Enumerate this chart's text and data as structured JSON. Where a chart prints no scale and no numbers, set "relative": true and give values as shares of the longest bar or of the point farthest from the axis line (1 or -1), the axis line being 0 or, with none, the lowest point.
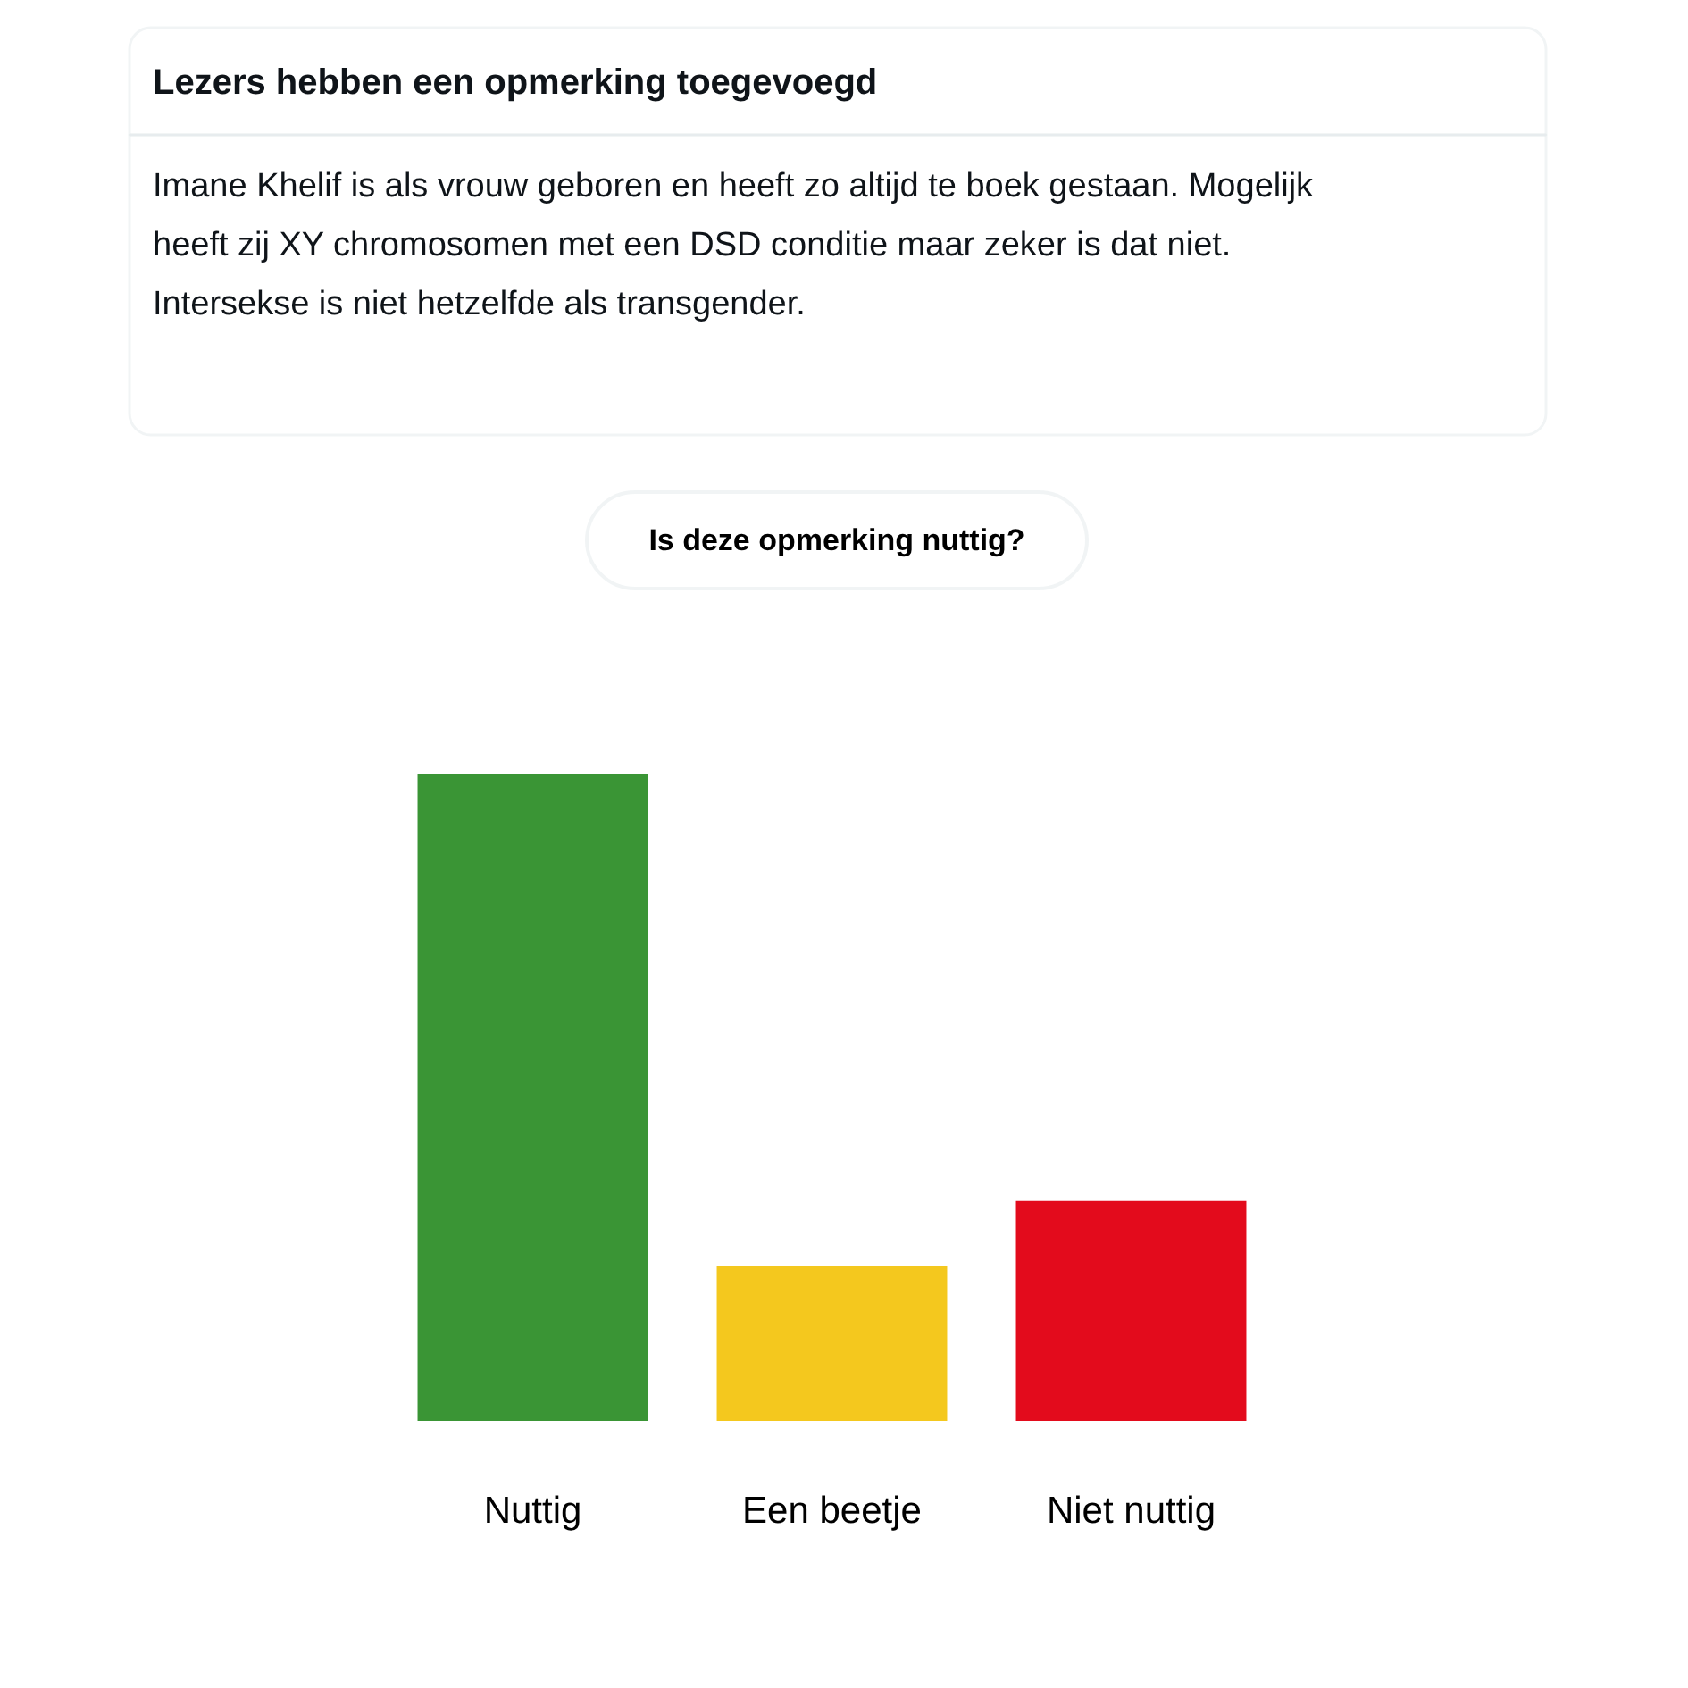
{
  "chart_data": {
    "type": "bar",
    "title": "Lezers hebben een opmerking toegevoegd",
    "subtitle": "Imane Khelif is als vrouw geboren en heeft zo altijd te boek gestaan. Mogelijk heeft zij XY chromosomen met een DSD conditie maar zeker is dat niet. Intersekse is niet hetzelfde als transgender.",
    "annotations": [
      "Is deze opmerking nuttig?"
    ],
    "categories": [
      "Nuttig",
      "Een beetje",
      "Niet nuttig"
    ],
    "values": [
      1,
      0.24,
      0.34
    ],
    "colors": [
      "#3a9535",
      "#f4c81e",
      "#e30b1c"
    ],
    "relative": true
  }
}
